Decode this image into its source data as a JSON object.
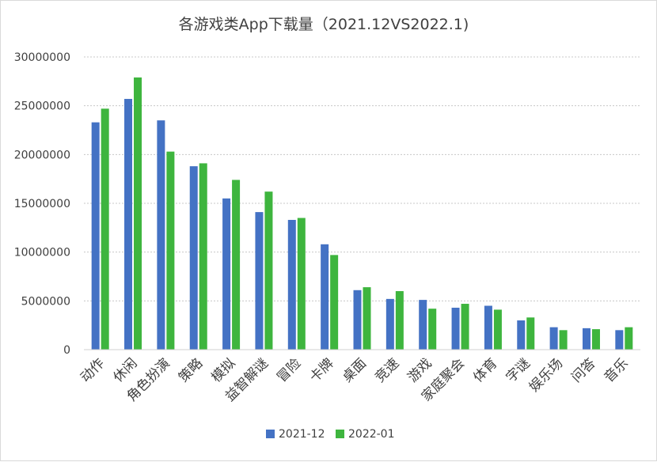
{
  "chart_data": {
    "type": "bar",
    "title": "各游戏类App下载量（2021.12VS2022.1)",
    "xlabel": "",
    "ylabel": "",
    "ylim": [
      0,
      30000000
    ],
    "yticks": [
      "0",
      "5000000",
      "10000000",
      "15000000",
      "20000000",
      "25000000",
      "30000000"
    ],
    "grid": true,
    "legend_position": "bottom",
    "categories": [
      "动作",
      "休闲",
      "角色扮演",
      "策略",
      "模拟",
      "益智解谜",
      "冒险",
      "卡牌",
      "桌面",
      "竞速",
      "游戏",
      "家庭聚会",
      "体育",
      "字谜",
      "娱乐场",
      "问答",
      "音乐"
    ],
    "series": [
      {
        "name": "2021-12",
        "color": "#4472c4",
        "values": [
          23300000,
          25700000,
          23500000,
          18800000,
          15500000,
          14100000,
          13300000,
          10800000,
          6100000,
          5200000,
          5100000,
          4300000,
          4500000,
          3000000,
          2300000,
          2200000,
          2000000
        ]
      },
      {
        "name": "2022-01",
        "color": "#3eb53e",
        "values": [
          24700000,
          27900000,
          20300000,
          19100000,
          17400000,
          16200000,
          13500000,
          9700000,
          6400000,
          6000000,
          4200000,
          4700000,
          4100000,
          3300000,
          2000000,
          2100000,
          2300000
        ]
      }
    ]
  }
}
